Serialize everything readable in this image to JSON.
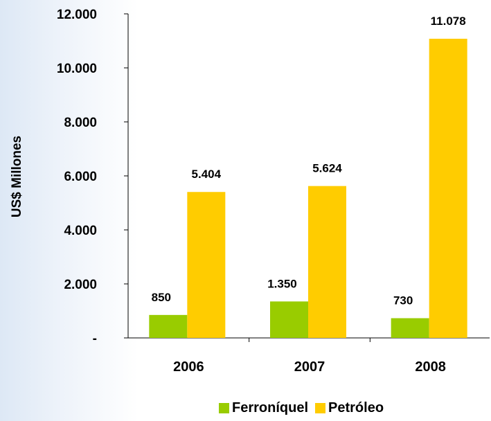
{
  "chart_data": {
    "type": "bar",
    "title": "",
    "xlabel": "",
    "ylabel": "US$ Millones",
    "ylim": [
      0,
      12000
    ],
    "grid": false,
    "legend_position": "bottom",
    "categories": [
      "2006",
      "2007",
      "2008"
    ],
    "y_ticks": [
      {
        "value": 0,
        "label": "-"
      },
      {
        "value": 2000,
        "label": "2.000"
      },
      {
        "value": 4000,
        "label": "4.000"
      },
      {
        "value": 6000,
        "label": "6.000"
      },
      {
        "value": 8000,
        "label": "8.000"
      },
      {
        "value": 10000,
        "label": "10.000"
      },
      {
        "value": 12000,
        "label": "12.000"
      }
    ],
    "series": [
      {
        "name": "Ferroníquel",
        "color": "#99cc00",
        "values": [
          850,
          1350,
          730
        ],
        "labels": [
          "850",
          "1.350",
          "730"
        ]
      },
      {
        "name": "Petróleo",
        "color": "#ffcc00",
        "values": [
          5404,
          5624,
          11078
        ],
        "labels": [
          "5.404",
          "5.624",
          "11.078"
        ]
      }
    ]
  }
}
